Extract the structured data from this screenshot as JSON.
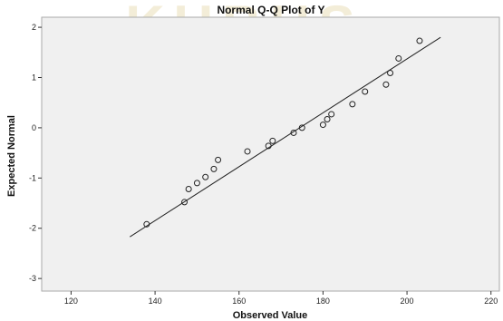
{
  "chart_data": {
    "type": "scatter",
    "title": "Normal Q-Q Plot of Y",
    "xlabel": "Observed Value",
    "ylabel": "Expected Normal",
    "xlim": [
      113,
      222
    ],
    "ylim": [
      -3.25,
      2.2
    ],
    "x_ticks": [
      120,
      140,
      160,
      180,
      200,
      220
    ],
    "y_ticks": [
      2,
      1,
      0,
      -1,
      -2,
      -3
    ],
    "grid": false,
    "legend": "none",
    "series": [
      {
        "values": [
          {
            "x": 138,
            "y": -1.92
          },
          {
            "x": 147,
            "y": -1.48
          },
          {
            "x": 148,
            "y": -1.22
          },
          {
            "x": 150,
            "y": -1.1
          },
          {
            "x": 152,
            "y": -0.98
          },
          {
            "x": 154,
            "y": -0.82
          },
          {
            "x": 155,
            "y": -0.64
          },
          {
            "x": 162,
            "y": -0.47
          },
          {
            "x": 167,
            "y": -0.36
          },
          {
            "x": 168,
            "y": -0.26
          },
          {
            "x": 173,
            "y": -0.1
          },
          {
            "x": 175,
            "y": 0.0
          },
          {
            "x": 180,
            "y": 0.06
          },
          {
            "x": 181,
            "y": 0.17
          },
          {
            "x": 182,
            "y": 0.27
          },
          {
            "x": 187,
            "y": 0.47
          },
          {
            "x": 190,
            "y": 0.72
          },
          {
            "x": 195,
            "y": 0.86
          },
          {
            "x": 196,
            "y": 1.09
          },
          {
            "x": 198,
            "y": 1.38
          },
          {
            "x": 203,
            "y": 1.73
          }
        ]
      }
    ],
    "reference_line": {
      "x1": 134,
      "y1": -2.17,
      "x2": 208,
      "y2": 1.8
    }
  },
  "colors": {
    "plot_background": "#f0f0f0",
    "frame": "#aaaaaa",
    "marker": "#222222",
    "line": "#222222",
    "watermark_text": "#eadfb9",
    "watermark_book": "#d5e6d6"
  }
}
